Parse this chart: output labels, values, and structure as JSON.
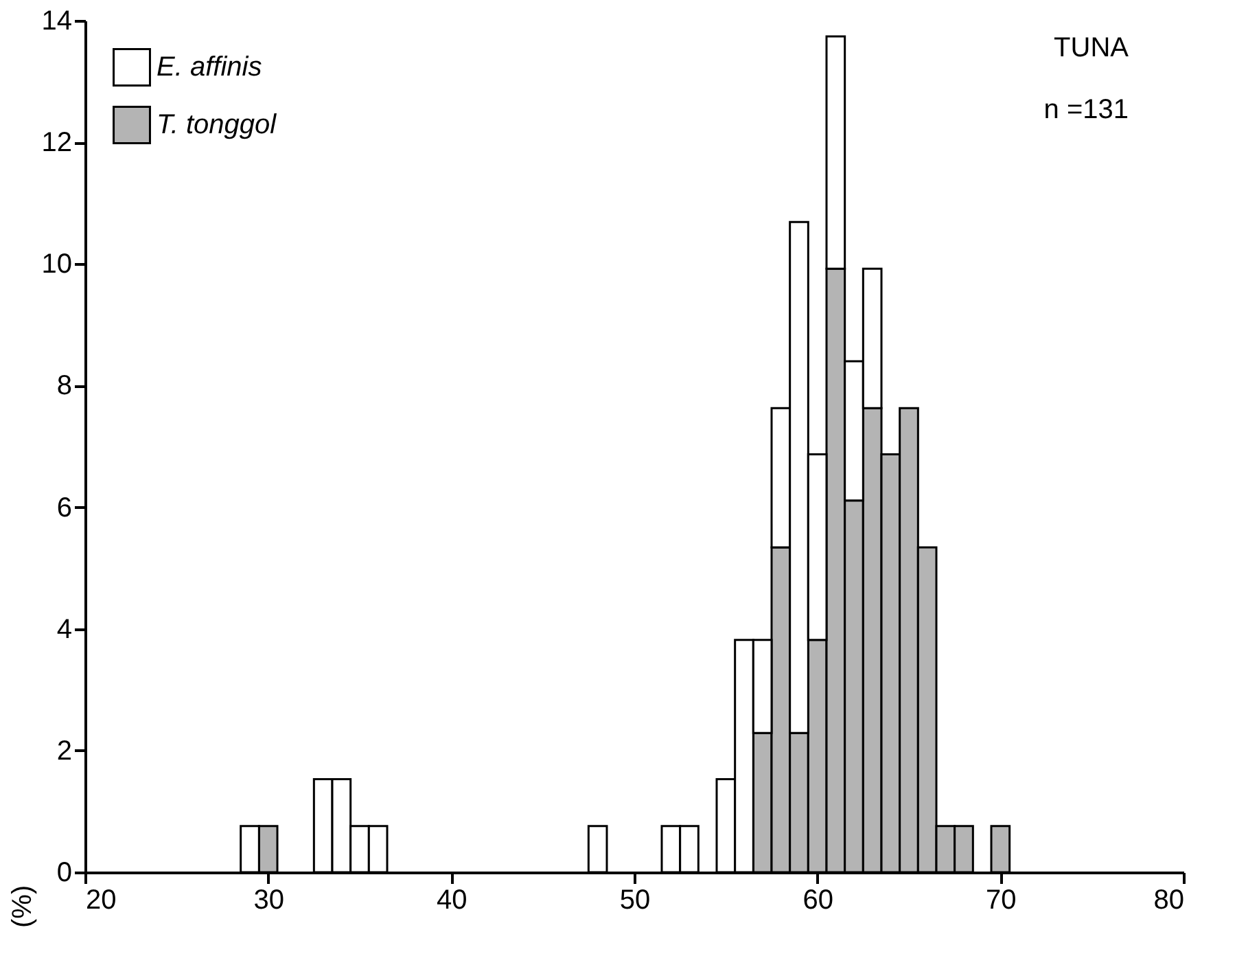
{
  "chart_data": {
    "type": "bar",
    "ylabel": "(%)",
    "stacked": true,
    "legend": "top left",
    "x": [
      29,
      30,
      31,
      32,
      33,
      34,
      35,
      36,
      37,
      38,
      39,
      40,
      41,
      42,
      43,
      44,
      45,
      46,
      47,
      48,
      49,
      50,
      51,
      52,
      53,
      54,
      55,
      56,
      57,
      58,
      59,
      60,
      61,
      62,
      63,
      64,
      65,
      66,
      67,
      68,
      69,
      70
    ],
    "series": [
      {
        "name": "T. tonggol",
        "color": "#b4b4b4",
        "values": [
          0,
          0.76,
          0,
          0,
          0,
          0,
          0,
          0,
          0,
          0,
          0,
          0,
          0,
          0,
          0,
          0,
          0,
          0,
          0,
          0,
          0,
          0,
          0,
          0,
          0,
          0,
          0,
          0,
          2.29,
          5.34,
          2.29,
          3.82,
          9.92,
          6.11,
          7.63,
          6.87,
          7.63,
          5.34,
          0.76,
          0.76,
          0,
          0.76
        ]
      },
      {
        "name": "E. affinis",
        "color": "#ffffff",
        "values": [
          0.76,
          0,
          0,
          0,
          1.53,
          1.53,
          0.76,
          0.76,
          0,
          0,
          0,
          0,
          0,
          0,
          0,
          0,
          0,
          0,
          0,
          0.76,
          0,
          0,
          0,
          0.76,
          0.76,
          0,
          1.53,
          3.82,
          1.53,
          2.29,
          8.4,
          3.05,
          3.82,
          2.29,
          2.29,
          0,
          0,
          0,
          0,
          0,
          0,
          0
        ]
      }
    ],
    "xlim": [
      20,
      80
    ],
    "xticks": [
      20,
      30,
      40,
      50,
      60,
      70,
      80
    ],
    "ylim": [
      0,
      14
    ],
    "yticks": [
      0,
      2,
      4,
      6,
      8,
      10,
      12,
      14
    ],
    "grid": false,
    "annotations": [
      "TUNA",
      "n =131"
    ]
  }
}
